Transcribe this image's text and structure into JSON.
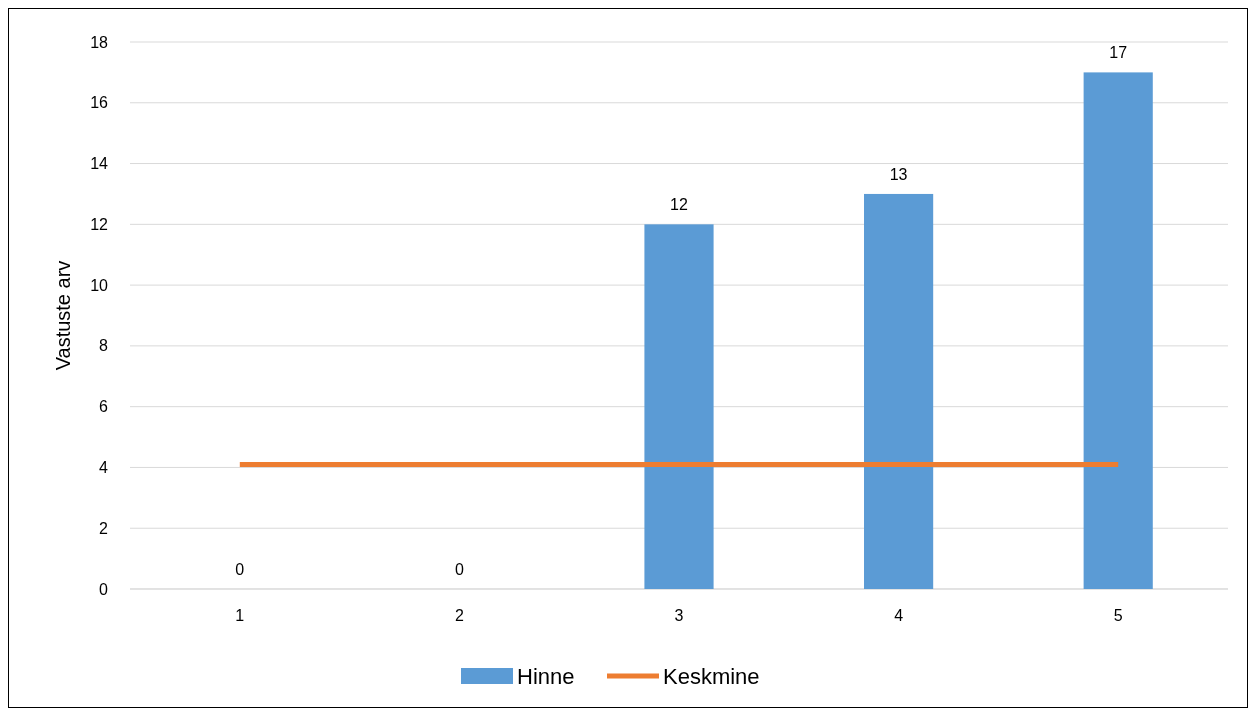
{
  "chart_data": {
    "type": "bar",
    "ylabel": "Vastuste arv",
    "categories": [
      "1",
      "2",
      "3",
      "4",
      "5"
    ],
    "series": [
      {
        "name": "Hinne",
        "color": "#5b9bd5",
        "values": [
          0,
          0,
          12,
          13,
          17
        ],
        "value_labels": [
          "0",
          "0",
          "12",
          "13",
          "17"
        ]
      },
      {
        "name": "Keskmine",
        "type": "line",
        "color": "#ed7d31",
        "values": [
          4.1,
          4.1,
          4.1,
          4.1,
          4.1
        ]
      }
    ],
    "ylim": [
      0,
      18
    ],
    "yticks": [
      0,
      2,
      4,
      6,
      8,
      10,
      12,
      14,
      16,
      18
    ],
    "grid": "y",
    "legend": "bottom",
    "marker": "none",
    "line_style": "solid"
  }
}
